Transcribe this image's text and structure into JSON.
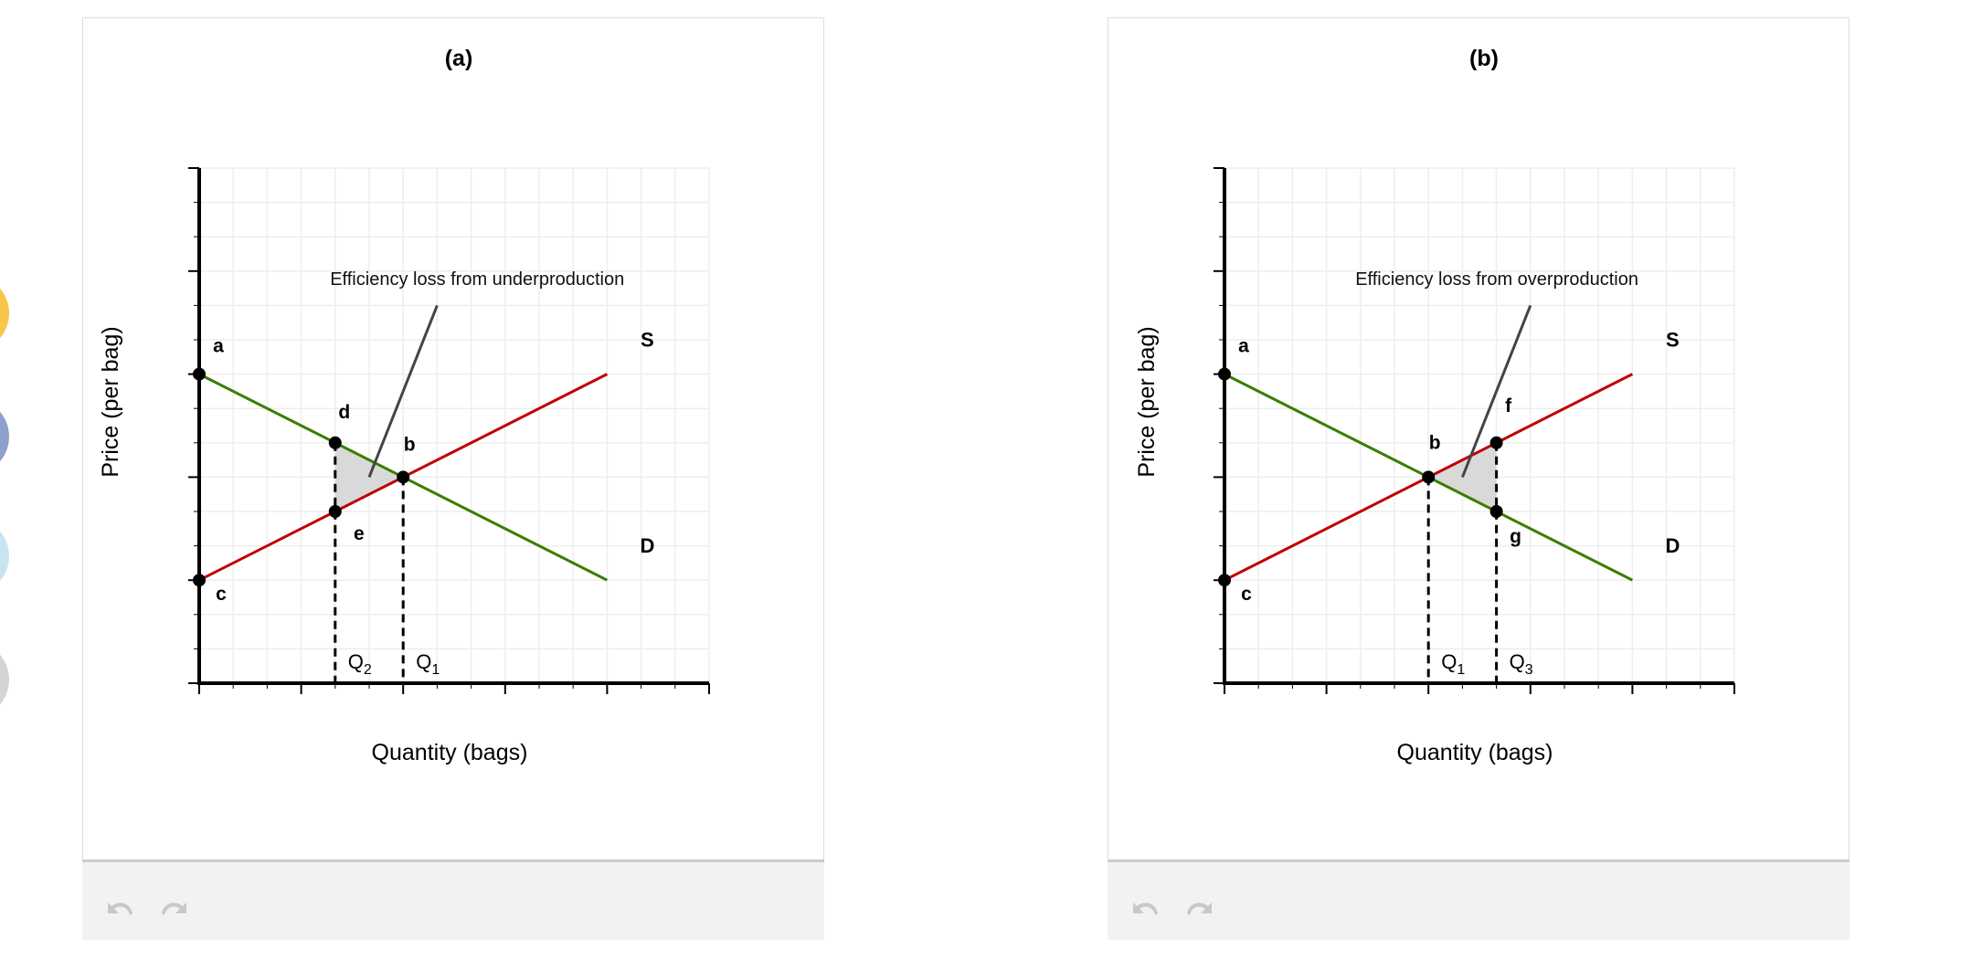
{
  "colors": {
    "supply": "#c00000",
    "demand": "#3a7d00",
    "axis": "#000000",
    "grid": "#eeeeee",
    "shade": "#d9d9d9",
    "leader": "#444444"
  },
  "side_bubbles": [
    "#f7c64a",
    "#8ea0cc",
    "#c8e4f2",
    "#d4d4d4"
  ],
  "footer": {
    "undo_icon": "undo-icon",
    "redo_icon": "redo-icon"
  },
  "chart_data": [
    {
      "type": "line",
      "title": "(a)",
      "xlabel": "Quantity (bags)",
      "ylabel": "Price (per bag)",
      "xlim": [
        0,
        15
      ],
      "ylim": [
        0,
        15
      ],
      "grid": true,
      "series": [
        {
          "name": "S",
          "color": "#c00000",
          "points": [
            [
              0,
              3
            ],
            [
              12,
              9
            ]
          ]
        },
        {
          "name": "D",
          "color": "#3a7d00",
          "points": [
            [
              0,
              9
            ],
            [
              12,
              3
            ]
          ]
        }
      ],
      "points": [
        {
          "label": "a",
          "x": 0,
          "y": 9
        },
        {
          "label": "c",
          "x": 0,
          "y": 3
        },
        {
          "label": "d",
          "x": 4,
          "y": 7
        },
        {
          "label": "e",
          "x": 4,
          "y": 5
        },
        {
          "label": "b",
          "x": 6,
          "y": 6
        }
      ],
      "shaded_area": [
        [
          4,
          7
        ],
        [
          6,
          6
        ],
        [
          4,
          5
        ]
      ],
      "quantity_markers": [
        {
          "label": "Q",
          "sub": "2",
          "x": 4,
          "y": 7
        },
        {
          "label": "Q",
          "sub": "1",
          "x": 6,
          "y": 6
        }
      ],
      "annotation": {
        "text": "Efficiency loss from underproduction",
        "from": [
          7,
          11
        ],
        "to": [
          5,
          6
        ]
      }
    },
    {
      "type": "line",
      "title": "(b)",
      "xlabel": "Quantity (bags)",
      "ylabel": "Price (per bag)",
      "xlim": [
        0,
        15
      ],
      "ylim": [
        0,
        15
      ],
      "grid": true,
      "series": [
        {
          "name": "S",
          "color": "#c00000",
          "points": [
            [
              0,
              3
            ],
            [
              12,
              9
            ]
          ]
        },
        {
          "name": "D",
          "color": "#3a7d00",
          "points": [
            [
              0,
              9
            ],
            [
              12,
              3
            ]
          ]
        }
      ],
      "points": [
        {
          "label": "a",
          "x": 0,
          "y": 9
        },
        {
          "label": "c",
          "x": 0,
          "y": 3
        },
        {
          "label": "b",
          "x": 6,
          "y": 6
        },
        {
          "label": "f",
          "x": 8,
          "y": 7
        },
        {
          "label": "g",
          "x": 8,
          "y": 5
        }
      ],
      "shaded_area": [
        [
          6,
          6
        ],
        [
          8,
          7
        ],
        [
          8,
          5
        ]
      ],
      "quantity_markers": [
        {
          "label": "Q",
          "sub": "1",
          "x": 6,
          "y": 6
        },
        {
          "label": "Q",
          "sub": "3",
          "x": 8,
          "y": 7
        }
      ],
      "annotation": {
        "text": "Efficiency loss from overproduction",
        "from": [
          9,
          11
        ],
        "to": [
          7,
          6
        ]
      }
    }
  ]
}
